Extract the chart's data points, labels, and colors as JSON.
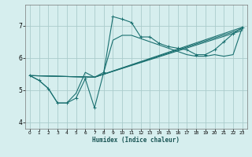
{
  "xlabel": "Humidex (Indice chaleur)",
  "bg_color": "#d6eeee",
  "grid_color": "#aacccc",
  "line_color": "#1a7070",
  "xlim": [
    -0.5,
    23.5
  ],
  "ylim": [
    3.8,
    7.65
  ],
  "xticks": [
    0,
    1,
    2,
    3,
    4,
    5,
    6,
    7,
    8,
    9,
    10,
    11,
    12,
    13,
    14,
    15,
    16,
    17,
    18,
    19,
    20,
    21,
    22,
    23
  ],
  "yticks": [
    4,
    5,
    6,
    7
  ],
  "line_main": {
    "x": [
      0,
      1,
      2,
      3,
      4,
      5,
      6,
      7,
      8,
      9,
      10,
      11,
      12,
      13,
      14,
      15,
      16,
      17,
      18,
      19,
      20,
      21,
      22,
      23
    ],
    "y": [
      5.45,
      5.3,
      5.05,
      4.6,
      4.6,
      4.75,
      5.35,
      4.45,
      5.55,
      7.28,
      7.2,
      7.1,
      6.65,
      6.65,
      6.45,
      6.35,
      6.3,
      6.25,
      6.1,
      6.1,
      6.25,
      6.5,
      6.75,
      6.95
    ]
  },
  "line_curved": {
    "x": [
      0,
      1,
      2,
      3,
      4,
      5,
      6,
      7,
      8,
      9,
      10,
      11,
      17,
      18,
      19,
      20,
      21,
      22,
      23
    ],
    "y": [
      5.45,
      5.3,
      5.05,
      4.6,
      4.6,
      4.9,
      5.55,
      5.4,
      5.55,
      6.55,
      6.7,
      6.7,
      6.1,
      6.05,
      6.05,
      6.1,
      6.05,
      6.1,
      6.95
    ]
  },
  "line_straight1": {
    "x": [
      0,
      7,
      23
    ],
    "y": [
      5.45,
      5.4,
      6.95
    ]
  },
  "line_straight2": {
    "x": [
      0,
      7,
      23
    ],
    "y": [
      5.45,
      5.4,
      6.9
    ]
  },
  "line_straight3": {
    "x": [
      0,
      7,
      23
    ],
    "y": [
      5.45,
      5.4,
      6.85
    ]
  }
}
